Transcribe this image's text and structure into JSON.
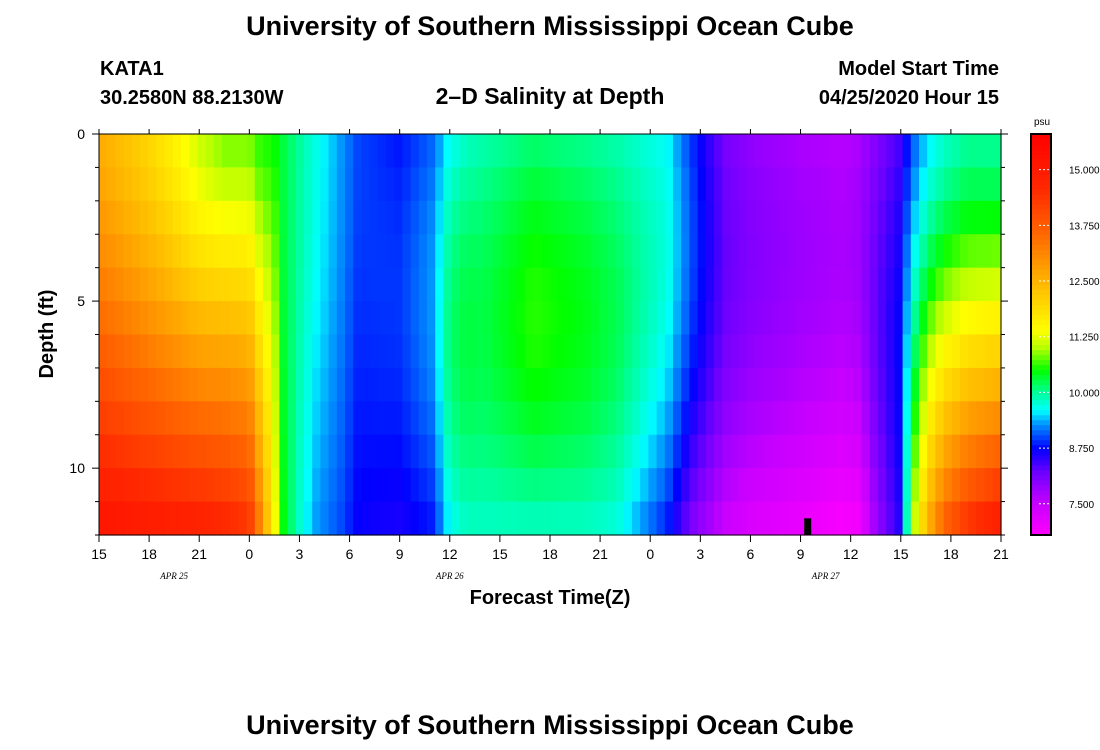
{
  "header": {
    "title": "University of Southern Mississippi Ocean Cube",
    "station": "KATA1",
    "coords": "30.2580N 88.2130W",
    "subtitle": "2–D Salinity at Depth",
    "model_label": "Model Start Time",
    "model_time": "04/25/2020 Hour 15",
    "footer_title": "University of Southern Mississippi Ocean Cube"
  },
  "colors": {
    "axis": "#000000",
    "colorbar_border": "#000000",
    "marker": "#000000"
  },
  "chart_data": {
    "type": "heatmap",
    "title": "2–D Salinity at Depth",
    "xlabel": "Forecast Time(Z)",
    "ylabel": "Depth (ft)",
    "x_range_hours": [
      0,
      54
    ],
    "y_range_ft": [
      0,
      12
    ],
    "x_ticks": [
      {
        "h": 0,
        "label": "15"
      },
      {
        "h": 3,
        "label": "18"
      },
      {
        "h": 6,
        "label": "21"
      },
      {
        "h": 9,
        "label": "0"
      },
      {
        "h": 12,
        "label": "3"
      },
      {
        "h": 15,
        "label": "6"
      },
      {
        "h": 18,
        "label": "9"
      },
      {
        "h": 21,
        "label": "12"
      },
      {
        "h": 24,
        "label": "15"
      },
      {
        "h": 27,
        "label": "18"
      },
      {
        "h": 30,
        "label": "21"
      },
      {
        "h": 33,
        "label": "0"
      },
      {
        "h": 36,
        "label": "3"
      },
      {
        "h": 39,
        "label": "6"
      },
      {
        "h": 42,
        "label": "9"
      },
      {
        "h": 45,
        "label": "12"
      },
      {
        "h": 48,
        "label": "15"
      },
      {
        "h": 51,
        "label": "18"
      },
      {
        "h": 54,
        "label": "21"
      }
    ],
    "date_labels": [
      {
        "h": 4.5,
        "label": "APR  25"
      },
      {
        "h": 21,
        "label": "APR  26"
      },
      {
        "h": 43.5,
        "label": "APR  27"
      }
    ],
    "y_ticks": [
      {
        "v": 0,
        "label": "0"
      },
      {
        "v": 5,
        "label": "5"
      },
      {
        "v": 10,
        "label": "10"
      }
    ],
    "colorbar": {
      "unit": "psu",
      "range": [
        6.8,
        15.8
      ],
      "ticks": [
        {
          "v": 7.5,
          "label": "7.500"
        },
        {
          "v": 8.75,
          "label": "8.750"
        },
        {
          "v": 10.0,
          "label": "10.000"
        },
        {
          "v": 11.25,
          "label": "11.250"
        },
        {
          "v": 12.5,
          "label": "12.500"
        },
        {
          "v": 13.75,
          "label": "13.750"
        },
        {
          "v": 15.0,
          "label": "15.000"
        }
      ],
      "colorscale": [
        {
          "v": 6.8,
          "color": "#ff00ff"
        },
        {
          "v": 7.5,
          "color": "#c800ff"
        },
        {
          "v": 8.2,
          "color": "#6e00ff"
        },
        {
          "v": 8.75,
          "color": "#0000ff"
        },
        {
          "v": 9.3,
          "color": "#0096ff"
        },
        {
          "v": 9.6,
          "color": "#00ffff"
        },
        {
          "v": 10.0,
          "color": "#00ff9a"
        },
        {
          "v": 10.5,
          "color": "#00ff00"
        },
        {
          "v": 11.0,
          "color": "#b4ff00"
        },
        {
          "v": 11.4,
          "color": "#ffff00"
        },
        {
          "v": 12.5,
          "color": "#ffb400"
        },
        {
          "v": 13.6,
          "color": "#ff6400"
        },
        {
          "v": 14.6,
          "color": "#ff2800"
        },
        {
          "v": 15.8,
          "color": "#ff0000"
        }
      ]
    },
    "time_profile": {
      "h": [
        0,
        3,
        6,
        7.5,
        9,
        9.5,
        10.5,
        11,
        12,
        13,
        14.5,
        15.5,
        18,
        20,
        21,
        22,
        23,
        26,
        29,
        31,
        34,
        35.5,
        36.5,
        37.5,
        39,
        42,
        44.5,
        45.5,
        46.5,
        48,
        48.6,
        49.6,
        50.6,
        52,
        54
      ],
      "top": [
        12.6,
        12.0,
        11.1,
        10.8,
        10.8,
        10.6,
        10.5,
        10.3,
        10.0,
        9.7,
        9.3,
        9.0,
        8.8,
        9.1,
        9.6,
        9.8,
        9.9,
        10.1,
        10.0,
        9.9,
        9.6,
        8.9,
        8.5,
        8.1,
        7.9,
        7.7,
        7.6,
        7.7,
        8.0,
        8.4,
        9.0,
        9.5,
        9.8,
        10.0,
        10.0
      ],
      "bottom": [
        15.3,
        15.1,
        15.0,
        14.8,
        14.5,
        13.5,
        11.5,
        10.5,
        9.8,
        9.3,
        9.0,
        8.7,
        8.6,
        8.8,
        9.6,
        9.8,
        9.8,
        9.8,
        9.8,
        9.7,
        8.8,
        8.0,
        7.7,
        7.4,
        7.2,
        7.0,
        6.8,
        6.9,
        7.8,
        8.6,
        10.8,
        12.6,
        13.8,
        14.6,
        15.2
      ],
      "mid": [
        0.12,
        0.1,
        0.2,
        0.4,
        0.4,
        0.3,
        0.2,
        0.0,
        0.0,
        0.0,
        0.0,
        0.0,
        0.2,
        0.3,
        0.55,
        0.5,
        0.4,
        0.6,
        0.5,
        0.4,
        0.3,
        0.3,
        0.3,
        0.3,
        0.3,
        0.3,
        0.3,
        0.3,
        0.3,
        0.3,
        0.3,
        0.3,
        0.2,
        0.15,
        0.1
      ]
    },
    "marker": {
      "h": 42.4,
      "depth_ft": [
        11.5,
        12.0
      ]
    }
  }
}
